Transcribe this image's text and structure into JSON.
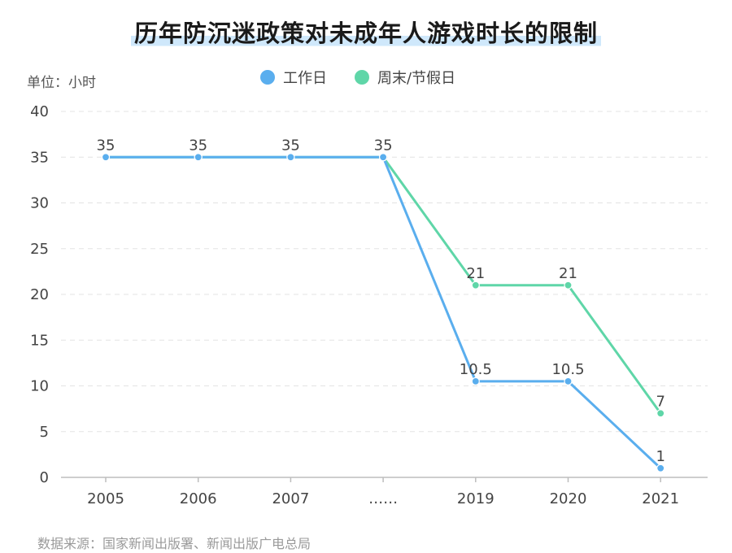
{
  "chart_data": {
    "type": "line",
    "title": "历年防沉迷政策对未成年人游戏时长的限制",
    "unit_label": "单位：小时",
    "categories": [
      "2005",
      "2006",
      "2007",
      "……",
      "2019",
      "2020",
      "2021"
    ],
    "ylim": [
      0,
      40
    ],
    "yticks": [
      0,
      5,
      10,
      15,
      20,
      25,
      30,
      35,
      40
    ],
    "grid": true,
    "legend_position": "top-center",
    "series": [
      {
        "name": "工作日",
        "color": "#5aaeee",
        "values": [
          35,
          35,
          35,
          35,
          10.5,
          10.5,
          1
        ],
        "labels": [
          "",
          "",
          "",
          "",
          "10.5",
          "10.5",
          "1"
        ]
      },
      {
        "name": "周末/节假日",
        "color": "#5fd6a8",
        "values": [
          35,
          35,
          35,
          35,
          21,
          21,
          7
        ],
        "labels": [
          "35",
          "35",
          "35",
          "35",
          "21",
          "21",
          "7"
        ]
      }
    ],
    "source": "数据来源：国家新闻出版署、新闻出版广电总局"
  }
}
